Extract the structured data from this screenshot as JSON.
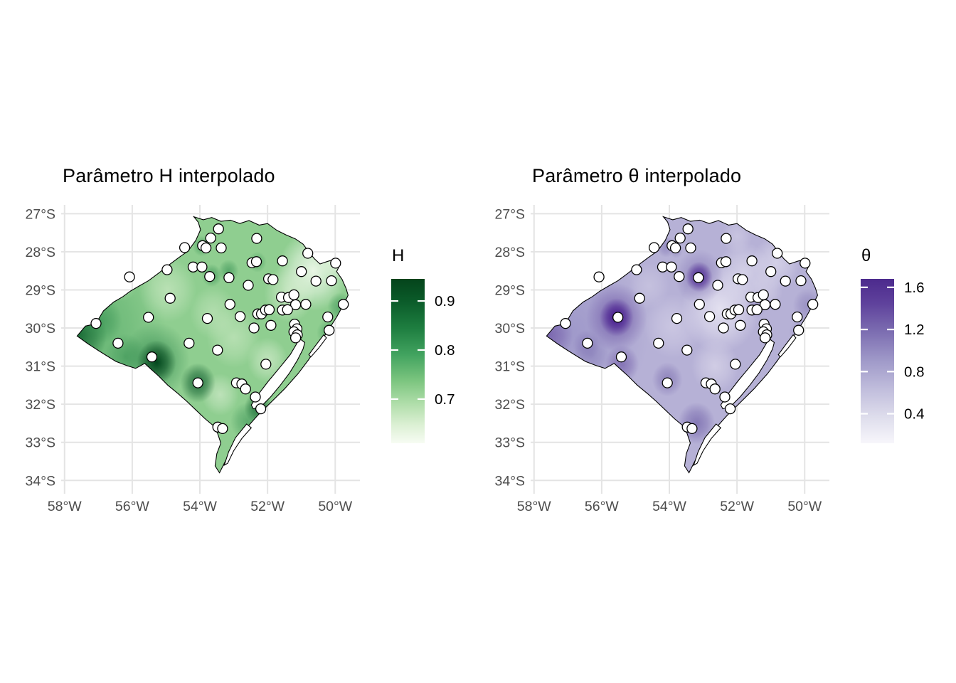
{
  "figure": {
    "background": "#ffffff",
    "grid_color": "#e4e4e4",
    "axis_text_color": "#4d4d4d",
    "outline_color": "#000000",
    "point_fill": "#ffffff",
    "point_stroke": "#000000"
  },
  "chart_data": {
    "type": "heatmap",
    "subtype": "interpolated-parameter-maps-with-stations",
    "grid": true,
    "legend_position": "right",
    "x_axis": {
      "values": [
        58,
        56,
        54,
        52,
        50
      ],
      "labels": [
        "58°W",
        "56°W",
        "54°W",
        "52°W",
        "50°W"
      ]
    },
    "y_axis": {
      "values": [
        27,
        28,
        29,
        30,
        31,
        32,
        33,
        34
      ],
      "labels": [
        "27°S",
        "28°S",
        "29°S",
        "30°S",
        "31°S",
        "32°S",
        "33°S",
        "34°S"
      ]
    },
    "lon_range_w": [
      58.1,
      49.27
    ],
    "lat_range_s": [
      26.77,
      34.35
    ],
    "panels": [
      {
        "key": "H",
        "title": "Parâmetro H interpolado",
        "legend_title": "H",
        "scale": {
          "min": 0.61,
          "max": 0.945,
          "ticks": [
            0.9,
            0.8,
            0.7
          ],
          "tick_labels": [
            "0.9",
            "0.8",
            "0.7"
          ]
        },
        "base_color": "#8fce90",
        "gradient": [
          {
            "at": 0.0,
            "color": "#04441b"
          },
          {
            "at": 0.14,
            "color": "#0b5c2a"
          },
          {
            "at": 0.3,
            "color": "#1e7e40"
          },
          {
            "at": 0.46,
            "color": "#41a35f"
          },
          {
            "at": 0.62,
            "color": "#7cc57f"
          },
          {
            "at": 0.76,
            "color": "#b0deaa"
          },
          {
            "at": 0.89,
            "color": "#dcf0d4"
          },
          {
            "at": 1.0,
            "color": "#f7fcf3"
          }
        ],
        "blobs": [
          {
            "lon": 57.3,
            "lat": 30.05,
            "r": 2.3,
            "color": "#3f9e59",
            "opacity": 0.55
          },
          {
            "lon": 50.65,
            "lat": 28.5,
            "r": 1.05,
            "color": "#f2faee",
            "opacity": 0.9
          },
          {
            "lon": 49.95,
            "lat": 28.15,
            "r": 0.6,
            "color": "#eaf6e4",
            "opacity": 0.75
          },
          {
            "lon": 51.35,
            "lat": 29.1,
            "r": 0.75,
            "color": "#e4f3dc",
            "opacity": 0.65
          },
          {
            "lon": 54.95,
            "lat": 29.0,
            "r": 0.85,
            "color": "#dcf0d2",
            "opacity": 0.55
          },
          {
            "lon": 53.6,
            "lat": 29.6,
            "r": 0.7,
            "color": "#dcf0d2",
            "opacity": 0.45
          },
          {
            "lon": 53.0,
            "lat": 30.25,
            "r": 0.8,
            "color": "#dcf0d2",
            "opacity": 0.5
          },
          {
            "lon": 52.0,
            "lat": 30.85,
            "r": 0.6,
            "color": "#e2f2da",
            "opacity": 0.6
          },
          {
            "lon": 53.4,
            "lat": 31.75,
            "r": 0.55,
            "color": "#e2f2da",
            "opacity": 0.55
          },
          {
            "lon": 56.3,
            "lat": 28.85,
            "r": 0.45,
            "color": "#d5ecca",
            "opacity": 0.35
          },
          {
            "lon": 57.55,
            "lat": 30.18,
            "r": 0.8,
            "color": "#10632f",
            "opacity": 0.85
          },
          {
            "lon": 56.9,
            "lat": 29.8,
            "r": 0.6,
            "color": "#2d8a4c",
            "opacity": 0.5
          },
          {
            "lon": 56.2,
            "lat": 30.75,
            "r": 0.6,
            "color": "#2d8a4c",
            "opacity": 0.5
          },
          {
            "lon": 55.3,
            "lat": 30.85,
            "r": 1.0,
            "color": "#1b7a3f",
            "opacity": 0.55
          },
          {
            "lon": 55.28,
            "lat": 30.9,
            "r": 0.58,
            "color": "#00441b",
            "opacity": 0.97
          },
          {
            "lon": 54.06,
            "lat": 31.44,
            "r": 0.52,
            "color": "#0c5a2c",
            "opacity": 0.8
          },
          {
            "lon": 53.65,
            "lat": 28.62,
            "r": 0.3,
            "color": "#2d8a4c",
            "opacity": 0.6
          },
          {
            "lon": 53.15,
            "lat": 28.5,
            "r": 0.3,
            "color": "#2d8a4c",
            "opacity": 0.55
          },
          {
            "lon": 53.95,
            "lat": 27.85,
            "r": 0.27,
            "color": "#2d8a4c",
            "opacity": 0.55
          },
          {
            "lon": 52.3,
            "lat": 28.27,
            "r": 0.27,
            "color": "#2d8a4c",
            "opacity": 0.45
          },
          {
            "lon": 52.27,
            "lat": 32.1,
            "r": 0.42,
            "color": "#0f5e2d",
            "opacity": 0.85
          },
          {
            "lon": 52.6,
            "lat": 32.45,
            "r": 0.5,
            "color": "#2d8a4c",
            "opacity": 0.5
          },
          {
            "lon": 49.85,
            "lat": 29.45,
            "r": 0.38,
            "color": "#2d8a4c",
            "opacity": 0.55
          },
          {
            "lon": 50.2,
            "lat": 30.12,
            "r": 0.35,
            "color": "#2d8a4c",
            "opacity": 0.45
          }
        ]
      },
      {
        "key": "theta",
        "title": "Parâmetro θ interpolado",
        "legend_title": "θ",
        "scale": {
          "min": 0.12,
          "max": 1.68,
          "ticks": [
            1.6,
            1.2,
            0.8,
            0.4
          ],
          "tick_labels": [
            "1.6",
            "1.2",
            "0.8",
            "0.4"
          ]
        },
        "base_color": "#b6b1d6",
        "gradient": [
          {
            "at": 0.0,
            "color": "#4c2a8d"
          },
          {
            "at": 0.15,
            "color": "#5f429c"
          },
          {
            "at": 0.32,
            "color": "#7c6db1"
          },
          {
            "at": 0.5,
            "color": "#a09ac9"
          },
          {
            "at": 0.68,
            "color": "#c2bfdd"
          },
          {
            "at": 0.84,
            "color": "#deddec"
          },
          {
            "at": 1.0,
            "color": "#f7f6fb"
          }
        ],
        "blobs": [
          {
            "lon": 56.9,
            "lat": 30.1,
            "r": 2.3,
            "color": "#9089c2",
            "opacity": 0.6
          },
          {
            "lon": 52.5,
            "lat": 29.5,
            "r": 1.15,
            "color": "#eeecf6",
            "opacity": 0.8
          },
          {
            "lon": 51.8,
            "lat": 28.55,
            "r": 0.8,
            "color": "#e7e5f2",
            "opacity": 0.6
          },
          {
            "lon": 53.9,
            "lat": 29.95,
            "r": 0.85,
            "color": "#dedbed",
            "opacity": 0.5
          },
          {
            "lon": 50.85,
            "lat": 28.3,
            "r": 0.7,
            "color": "#e7e5f2",
            "opacity": 0.6
          },
          {
            "lon": 52.65,
            "lat": 31.0,
            "r": 0.7,
            "color": "#e2dfee",
            "opacity": 0.6
          },
          {
            "lon": 54.6,
            "lat": 28.9,
            "r": 0.6,
            "color": "#dbd8ea",
            "opacity": 0.4
          },
          {
            "lon": 51.15,
            "lat": 29.0,
            "r": 0.5,
            "color": "#e2dfee",
            "opacity": 0.5
          },
          {
            "lon": 52.0,
            "lat": 27.6,
            "r": 0.45,
            "color": "#dedbed",
            "opacity": 0.45
          },
          {
            "lon": 57.55,
            "lat": 30.18,
            "r": 0.7,
            "color": "#6a51a3",
            "opacity": 0.7
          },
          {
            "lon": 56.45,
            "lat": 30.45,
            "r": 0.4,
            "color": "#7b6cb0",
            "opacity": 0.5
          },
          {
            "lon": 56.3,
            "lat": 30.7,
            "r": 0.5,
            "color": "#8278b5",
            "opacity": 0.45
          },
          {
            "lon": 55.56,
            "lat": 29.72,
            "r": 0.9,
            "color": "#6a51a3",
            "opacity": 0.7
          },
          {
            "lon": 55.56,
            "lat": 29.72,
            "r": 0.5,
            "color": "#401189",
            "opacity": 0.95
          },
          {
            "lon": 55.4,
            "lat": 30.95,
            "r": 0.5,
            "color": "#6a51a3",
            "opacity": 0.6
          },
          {
            "lon": 53.12,
            "lat": 28.66,
            "r": 0.72,
            "color": "#7d6eb1",
            "opacity": 0.6
          },
          {
            "lon": 53.12,
            "lat": 28.66,
            "r": 0.4,
            "color": "#4a2390",
            "opacity": 0.92
          },
          {
            "lon": 54.06,
            "lat": 31.35,
            "r": 0.45,
            "color": "#7566ab",
            "opacity": 0.6
          },
          {
            "lon": 53.2,
            "lat": 32.5,
            "r": 0.55,
            "color": "#7060a8",
            "opacity": 0.7
          },
          {
            "lon": 54.1,
            "lat": 27.87,
            "r": 0.28,
            "color": "#8176b4",
            "opacity": 0.6
          },
          {
            "lon": 53.8,
            "lat": 27.97,
            "r": 0.2,
            "color": "#8a80b9",
            "opacity": 0.5
          },
          {
            "lon": 51.45,
            "lat": 29.45,
            "r": 0.3,
            "color": "#8d84bd",
            "opacity": 0.55
          },
          {
            "lon": 49.9,
            "lat": 29.4,
            "r": 0.45,
            "color": "#8a80b9",
            "opacity": 0.65
          },
          {
            "lon": 50.15,
            "lat": 30.1,
            "r": 0.32,
            "color": "#968dc3",
            "opacity": 0.5
          }
        ]
      }
    ],
    "points": [
      [
        53.45,
        27.4
      ],
      [
        53.68,
        27.64
      ],
      [
        53.92,
        27.84
      ],
      [
        53.82,
        27.9
      ],
      [
        54.45,
        27.89
      ],
      [
        53.37,
        27.9
      ],
      [
        52.32,
        27.65
      ],
      [
        52.46,
        28.29
      ],
      [
        52.33,
        28.26
      ],
      [
        51.56,
        28.24
      ],
      [
        50.81,
        28.04
      ],
      [
        54.97,
        28.47
      ],
      [
        54.2,
        28.4
      ],
      [
        53.94,
        28.4
      ],
      [
        53.71,
        28.65
      ],
      [
        53.14,
        28.68
      ],
      [
        52.57,
        28.88
      ],
      [
        51.97,
        28.71
      ],
      [
        51.84,
        28.73
      ],
      [
        56.08,
        28.66
      ],
      [
        51.0,
        28.52
      ],
      [
        50.57,
        28.77
      ],
      [
        50.11,
        28.76
      ],
      [
        49.99,
        28.3
      ],
      [
        54.88,
        29.22
      ],
      [
        51.59,
        29.19
      ],
      [
        51.38,
        29.2
      ],
      [
        51.22,
        29.13
      ],
      [
        53.11,
        29.38
      ],
      [
        51.17,
        29.39
      ],
      [
        50.87,
        29.38
      ],
      [
        51.56,
        29.53
      ],
      [
        51.41,
        29.52
      ],
      [
        49.76,
        29.38
      ],
      [
        53.78,
        29.75
      ],
      [
        52.81,
        29.7
      ],
      [
        52.29,
        29.63
      ],
      [
        52.18,
        29.63
      ],
      [
        52.06,
        29.53
      ],
      [
        51.95,
        29.52
      ],
      [
        55.52,
        29.72
      ],
      [
        57.07,
        29.88
      ],
      [
        52.4,
        30.0
      ],
      [
        51.9,
        29.93
      ],
      [
        51.2,
        29.9
      ],
      [
        51.13,
        30.02
      ],
      [
        51.22,
        30.1
      ],
      [
        51.12,
        30.18
      ],
      [
        51.17,
        30.26
      ],
      [
        50.22,
        29.71
      ],
      [
        50.18,
        30.06
      ],
      [
        56.42,
        30.4
      ],
      [
        54.32,
        30.4
      ],
      [
        53.48,
        30.58
      ],
      [
        55.42,
        30.76
      ],
      [
        52.05,
        30.95
      ],
      [
        54.06,
        31.44
      ],
      [
        52.92,
        31.44
      ],
      [
        52.76,
        31.47
      ],
      [
        52.65,
        31.6
      ],
      [
        52.36,
        31.81
      ],
      [
        52.2,
        32.12
      ],
      [
        53.47,
        32.6
      ],
      [
        53.33,
        32.64
      ]
    ],
    "boundary": [
      [
        54.18,
        27.08
      ],
      [
        53.9,
        27.16
      ],
      [
        53.65,
        27.1
      ],
      [
        53.38,
        27.2
      ],
      [
        53.1,
        27.17
      ],
      [
        52.82,
        27.26
      ],
      [
        52.55,
        27.18
      ],
      [
        52.25,
        27.3
      ],
      [
        52.0,
        27.26
      ],
      [
        51.72,
        27.44
      ],
      [
        51.45,
        27.56
      ],
      [
        51.18,
        27.66
      ],
      [
        50.95,
        27.8
      ],
      [
        50.78,
        28.0
      ],
      [
        50.62,
        28.18
      ],
      [
        50.45,
        28.32
      ],
      [
        50.22,
        28.25
      ],
      [
        50.02,
        28.2
      ],
      [
        49.86,
        28.34
      ],
      [
        49.96,
        28.52
      ],
      [
        49.8,
        28.72
      ],
      [
        49.68,
        28.96
      ],
      [
        49.62,
        29.14
      ],
      [
        49.72,
        29.33
      ],
      [
        49.95,
        29.7
      ],
      [
        50.2,
        30.05
      ],
      [
        50.5,
        30.45
      ],
      [
        50.8,
        30.85
      ],
      [
        51.1,
        31.2
      ],
      [
        51.5,
        31.6
      ],
      [
        51.9,
        31.95
      ],
      [
        52.3,
        32.3
      ],
      [
        52.7,
        32.7
      ],
      [
        53.0,
        33.1
      ],
      [
        53.25,
        33.5
      ],
      [
        53.42,
        33.8
      ],
      [
        53.55,
        33.62
      ],
      [
        53.5,
        33.3
      ],
      [
        53.38,
        33.02
      ],
      [
        53.48,
        32.76
      ],
      [
        53.62,
        32.55
      ],
      [
        53.85,
        32.38
      ],
      [
        54.12,
        32.15
      ],
      [
        54.38,
        31.93
      ],
      [
        54.65,
        31.72
      ],
      [
        54.95,
        31.5
      ],
      [
        55.22,
        31.26
      ],
      [
        55.47,
        31.06
      ],
      [
        55.63,
        30.93
      ],
      [
        55.9,
        31.06
      ],
      [
        56.18,
        30.98
      ],
      [
        56.48,
        30.88
      ],
      [
        56.75,
        30.73
      ],
      [
        57.02,
        30.58
      ],
      [
        57.3,
        30.42
      ],
      [
        57.63,
        30.21
      ],
      [
        57.38,
        29.95
      ],
      [
        57.08,
        29.89
      ],
      [
        56.85,
        29.55
      ],
      [
        56.55,
        29.32
      ],
      [
        56.28,
        29.18
      ],
      [
        56.05,
        29.03
      ],
      [
        55.8,
        28.9
      ],
      [
        55.52,
        28.76
      ],
      [
        55.22,
        28.56
      ],
      [
        54.92,
        28.35
      ],
      [
        54.62,
        28.15
      ],
      [
        54.35,
        27.98
      ],
      [
        54.12,
        27.7
      ],
      [
        53.98,
        27.42
      ],
      [
        54.05,
        27.22
      ]
    ],
    "lagoons": [
      [
        [
          51.05,
          30.28
        ],
        [
          51.33,
          30.7
        ],
        [
          51.65,
          31.05
        ],
        [
          51.98,
          31.4
        ],
        [
          52.28,
          31.75
        ],
        [
          52.48,
          32.02
        ],
        [
          52.42,
          32.12
        ],
        [
          52.18,
          32.05
        ],
        [
          51.9,
          31.8
        ],
        [
          51.62,
          31.5
        ],
        [
          51.35,
          31.18
        ],
        [
          51.12,
          30.85
        ],
        [
          50.95,
          30.55
        ],
        [
          50.9,
          30.38
        ]
      ],
      [
        [
          52.62,
          32.52
        ],
        [
          52.95,
          32.88
        ],
        [
          53.15,
          33.25
        ],
        [
          53.28,
          33.6
        ],
        [
          53.18,
          33.55
        ],
        [
          53.0,
          33.22
        ],
        [
          52.76,
          32.9
        ],
        [
          52.48,
          32.62
        ]
      ],
      [
        [
          51.12,
          30.0
        ],
        [
          51.3,
          30.12
        ],
        [
          51.27,
          30.3
        ],
        [
          51.1,
          30.2
        ]
      ],
      [
        [
          50.34,
          30.18
        ],
        [
          50.58,
          30.46
        ],
        [
          50.78,
          30.7
        ],
        [
          50.72,
          30.76
        ],
        [
          50.5,
          30.54
        ],
        [
          50.26,
          30.26
        ]
      ]
    ]
  }
}
